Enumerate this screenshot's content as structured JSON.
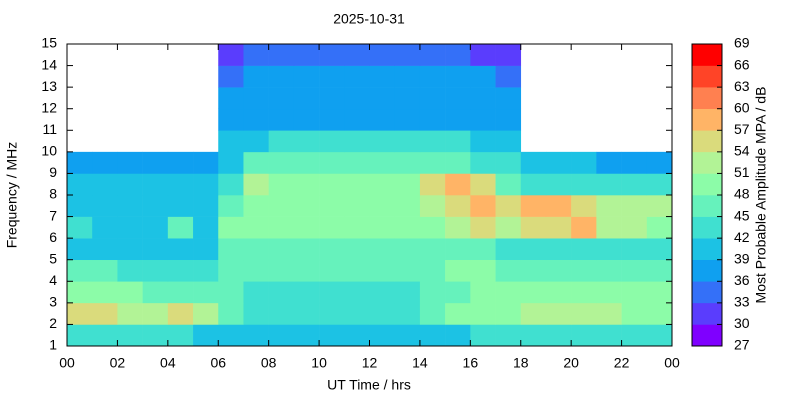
{
  "chart_data": {
    "type": "heatmap",
    "title": "2025-10-31",
    "x_label": "UT Time / hrs",
    "y_label": "Frequency / MHz",
    "colorbar_label": "Most Probable Amplitude MPA / dB",
    "x": [
      0.5,
      1.5,
      2.5,
      3.5,
      4.5,
      5.5,
      6.5,
      7.5,
      8.5,
      9.5,
      10.5,
      11.5,
      12.5,
      13.5,
      14.5,
      15.5,
      16.5,
      17.5,
      18.5,
      19.5,
      20.5,
      21.5,
      22.5,
      23.5
    ],
    "y": [
      1.5,
      2.5,
      3.5,
      4.5,
      5.5,
      6.5,
      7.5,
      8.5,
      9.5,
      10.5,
      11.5,
      12.5,
      13.5,
      14.5
    ],
    "z": [
      [
        42,
        42,
        42,
        42,
        42,
        41,
        40,
        40,
        40,
        40,
        40,
        40,
        40,
        40,
        41,
        41,
        42,
        42,
        42,
        42,
        42,
        42,
        42,
        42
      ],
      [
        54,
        54,
        51,
        51,
        54,
        51,
        45,
        42,
        42,
        42,
        42,
        42,
        42,
        42,
        45,
        48,
        48,
        48,
        51,
        51,
        51,
        51,
        48,
        48
      ],
      [
        48,
        48,
        48,
        45,
        45,
        45,
        45,
        42,
        42,
        42,
        42,
        42,
        42,
        42,
        45,
        45,
        48,
        48,
        48,
        48,
        48,
        48,
        48,
        48
      ],
      [
        45,
        45,
        42,
        42,
        42,
        42,
        45,
        45,
        45,
        45,
        45,
        45,
        45,
        45,
        45,
        48,
        48,
        45,
        45,
        45,
        45,
        45,
        45,
        45
      ],
      [
        40,
        40,
        40,
        40,
        40,
        40,
        45,
        45,
        45,
        45,
        45,
        45,
        45,
        45,
        45,
        45,
        45,
        42,
        42,
        42,
        42,
        42,
        42,
        42
      ],
      [
        42,
        40,
        40,
        40,
        45,
        40,
        48,
        48,
        48,
        48,
        48,
        48,
        48,
        48,
        48,
        51,
        54,
        51,
        54,
        54,
        57,
        51,
        51,
        48
      ],
      [
        40,
        40,
        40,
        40,
        40,
        40,
        45,
        48,
        48,
        48,
        48,
        48,
        48,
        48,
        51,
        54,
        57,
        54,
        57,
        57,
        54,
        51,
        51,
        51
      ],
      [
        39,
        39,
        39,
        39,
        39,
        39,
        42,
        51,
        48,
        48,
        48,
        48,
        48,
        48,
        54,
        57,
        54,
        45,
        42,
        42,
        42,
        42,
        42,
        42
      ],
      [
        37,
        37,
        36,
        37,
        37,
        37,
        40,
        45,
        45,
        45,
        45,
        45,
        45,
        45,
        45,
        45,
        42,
        42,
        39,
        39,
        39,
        38,
        38,
        38
      ],
      [
        null,
        null,
        null,
        null,
        null,
        null,
        39,
        39,
        42,
        42,
        42,
        42,
        42,
        42,
        42,
        42,
        39,
        39,
        null,
        null,
        null,
        null,
        null,
        null
      ],
      [
        null,
        null,
        null,
        null,
        null,
        null,
        37,
        38,
        38,
        38,
        38,
        38,
        38,
        38,
        38,
        38,
        38,
        38,
        null,
        null,
        null,
        null,
        null,
        null
      ],
      [
        null,
        null,
        null,
        null,
        null,
        null,
        36,
        38,
        38,
        38,
        38,
        38,
        38,
        38,
        38,
        38,
        38,
        37,
        null,
        null,
        null,
        null,
        null,
        null
      ],
      [
        null,
        null,
        null,
        null,
        null,
        null,
        33,
        36,
        36,
        36,
        36,
        36,
        36,
        38,
        38,
        36,
        36,
        35,
        null,
        null,
        null,
        null,
        null,
        null
      ],
      [
        null,
        null,
        null,
        null,
        null,
        null,
        30,
        33,
        33,
        33,
        33,
        33,
        33,
        33,
        33,
        33,
        32,
        30,
        null,
        null,
        null,
        null,
        null,
        null
      ]
    ],
    "xlim": [
      0,
      24
    ],
    "xticks": [
      {
        "value": 0,
        "label": "00"
      },
      {
        "value": 2,
        "label": "02"
      },
      {
        "value": 4,
        "label": "04"
      },
      {
        "value": 6,
        "label": "06"
      },
      {
        "value": 8,
        "label": "08"
      },
      10,
      12,
      14,
      16,
      18,
      20,
      22,
      {
        "value": 24,
        "label": "00"
      }
    ],
    "ylim": [
      1,
      15
    ],
    "yticks": [
      1,
      2,
      3,
      4,
      5,
      6,
      7,
      8,
      9,
      10,
      11,
      12,
      13,
      14,
      15
    ],
    "zlim": [
      27,
      69
    ],
    "zticks": [
      27,
      30,
      33,
      36,
      39,
      42,
      45,
      48,
      51,
      54,
      57,
      60,
      63,
      66,
      69
    ],
    "colors": [
      "#7f00ff",
      "#5a3dfd",
      "#3470f8",
      "#0fa0f0",
      "#1cc2e4",
      "#40e0d0",
      "#66f2bc",
      "#8cfca8",
      "#b2f396",
      "#dadb7c",
      "#ffb466",
      "#ff8050",
      "#ff4427",
      "#ff0000"
    ]
  }
}
